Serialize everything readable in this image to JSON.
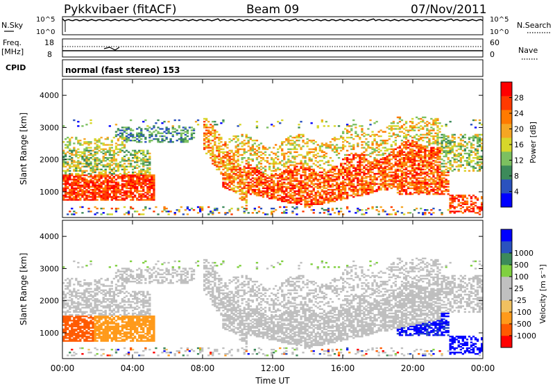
{
  "header": {
    "radar": "Pykkvibaer (fitACF)",
    "beam": "Beam 09",
    "date": "07/Nov/2011"
  },
  "small_panels": {
    "nsky_label": "N.Sky",
    "nsearch_label": "N.Search",
    "top_ticks_left": [
      "10^5",
      "10^0"
    ],
    "top_ticks_right": [
      "10^5",
      "10^0"
    ],
    "freq_label_1": "Freq.",
    "freq_label_2": "[MHz]",
    "freq_ticks": [
      "18",
      "8"
    ],
    "nave_label": "Nave",
    "nave_ticks": [
      "60",
      "0"
    ],
    "cpid_label": "CPID",
    "cpid_text": "normal (fast stereo) 153"
  },
  "colors": {
    "power": [
      "#0000ff",
      "#2a52be",
      "#3c8a5a",
      "#7cc060",
      "#d7d72a",
      "#f5a623",
      "#ff7a00",
      "#ff3a00",
      "#ff0000"
    ],
    "velocity": [
      "#ff0000",
      "#ff5a00",
      "#ff9a1a",
      "#f0c060",
      "#c0c0c0",
      "#c0c0c0",
      "#80d040",
      "#3c8a5a",
      "#2a52be",
      "#0000ff"
    ],
    "ground_scatter": "#bfbfbf"
  },
  "chart_data": [
    {
      "type": "heatmap",
      "panel": "power",
      "ylabel": "Slant Range [km]",
      "yticks": [
        "1000",
        "2000",
        "3000",
        "4000"
      ],
      "ylim": [
        200,
        4500
      ],
      "xlim": [
        0,
        24
      ],
      "colorbar_label": "Power [dB]",
      "colorbar_ticks": [
        "4",
        "8",
        "12",
        "16",
        "20",
        "24",
        "28"
      ],
      "colorbar_range": [
        0,
        32
      ]
    },
    {
      "type": "heatmap",
      "panel": "velocity",
      "ylabel": "Slant Range [km]",
      "yticks": [
        "1000",
        "2000",
        "3000",
        "4000"
      ],
      "ylim": [
        200,
        4500
      ],
      "xlim": [
        0,
        24
      ],
      "colorbar_label": "Velocity [m s⁻¹]",
      "colorbar_ticks": [
        "-1000",
        "-500",
        "-100",
        "-25",
        "25",
        "100",
        "500",
        "1000"
      ]
    }
  ],
  "xaxis": {
    "label": "Time UT",
    "ticks": [
      "00:00",
      "04:00",
      "08:00",
      "12:00",
      "16:00",
      "20:00",
      "00:00"
    ]
  }
}
